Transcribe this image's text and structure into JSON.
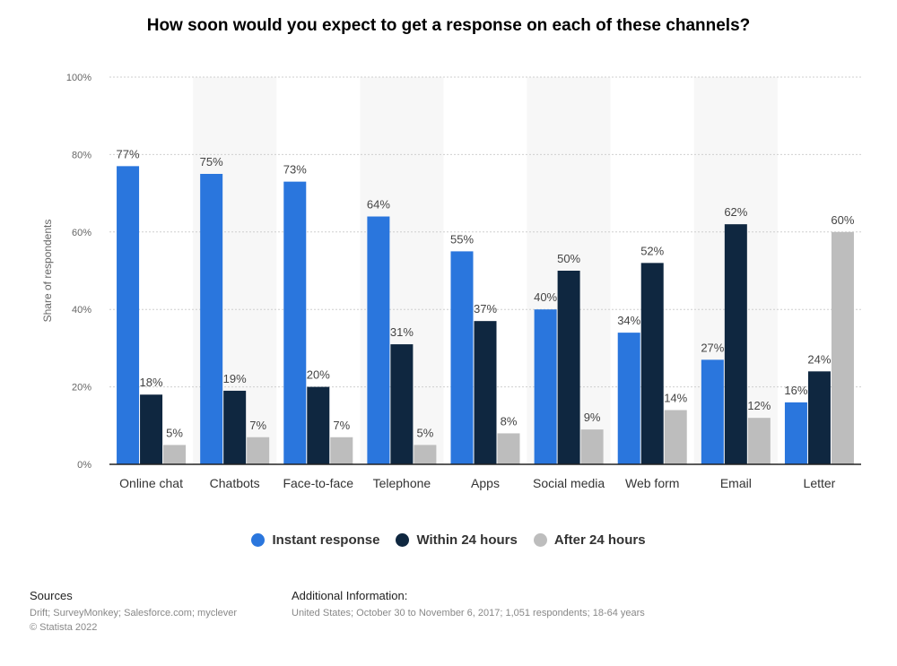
{
  "chart_data": {
    "type": "bar",
    "title": "How soon would you expect to get a response on each of these channels?",
    "xlabel": "",
    "ylabel": "Share of respondents",
    "ylim": [
      0,
      100
    ],
    "yticks": [
      "0%",
      "20%",
      "40%",
      "60%",
      "80%",
      "100%"
    ],
    "categories": [
      "Online chat",
      "Chatbots",
      "Face-to-face",
      "Telephone",
      "Apps",
      "Social media",
      "Web form",
      "Email",
      "Letter"
    ],
    "series": [
      {
        "name": "Instant response",
        "color": "#2a76dd",
        "values": [
          77,
          75,
          73,
          64,
          55,
          40,
          34,
          27,
          16
        ]
      },
      {
        "name": "Within 24 hours",
        "color": "#0f2740",
        "values": [
          18,
          19,
          20,
          31,
          37,
          50,
          52,
          62,
          24
        ]
      },
      {
        "name": "After 24 hours",
        "color": "#bdbdbd",
        "values": [
          5,
          7,
          7,
          5,
          8,
          9,
          14,
          12,
          60
        ]
      }
    ],
    "value_suffix": "%",
    "grid": true,
    "legend": "bottom"
  },
  "footer": {
    "sources_heading": "Sources",
    "sources_line1": "Drift; SurveyMonkey; Salesforce.com; myclever",
    "sources_line2": "© Statista 2022",
    "info_heading": "Additional Information:",
    "info_line1": "United States; October 30 to November 6, 2017; 1,051 respondents; 18-64 years"
  }
}
